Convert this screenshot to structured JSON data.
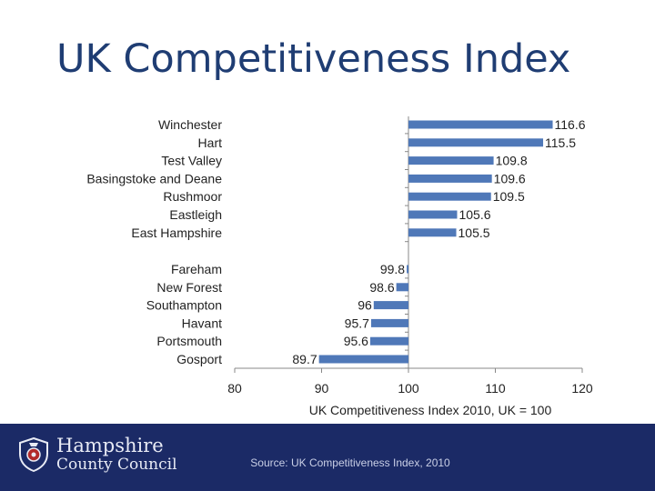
{
  "slide": {
    "title": "UK Competitiveness Index"
  },
  "footer": {
    "org_line1": "Hampshire",
    "org_line2": "County Council",
    "logo_icon": "hampshire-crest-icon",
    "source": "Source: UK Competitiveness Index, 2010",
    "background": "#1b2a66"
  },
  "chart_data": {
    "type": "bar",
    "orientation": "horizontal",
    "title": "",
    "xlabel": "UK Competitiveness Index 2010, UK = 100",
    "ylabel": "",
    "xlim": [
      80,
      120
    ],
    "xticks": [
      80,
      90,
      100,
      110,
      120
    ],
    "baseline": 100,
    "grid": false,
    "bar_color": "#4f78b8",
    "groups": [
      {
        "categories": [
          "Winchester",
          "Hart",
          "Test Valley",
          "Basingstoke and Deane",
          "Rushmoor",
          "Eastleigh",
          "East Hampshire"
        ],
        "values": [
          116.6,
          115.5,
          109.8,
          109.6,
          109.5,
          105.6,
          105.5
        ]
      },
      {
        "categories": [
          "Fareham",
          "New Forest",
          "Southampton",
          "Havant",
          "Portsmouth",
          "Gosport"
        ],
        "values": [
          99.8,
          98.6,
          96,
          95.7,
          95.6,
          89.7
        ]
      }
    ]
  }
}
